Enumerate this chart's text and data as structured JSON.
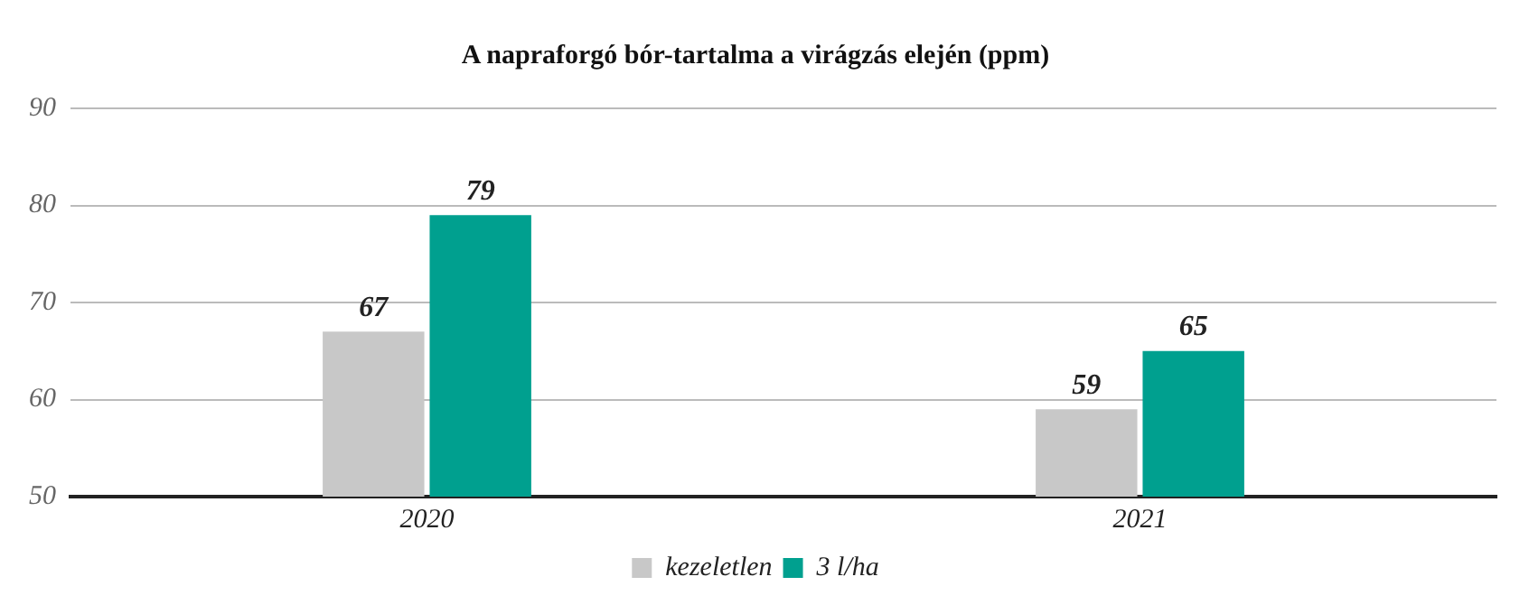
{
  "chart_data": {
    "type": "bar",
    "title": "A napraforgó bór-tartalma a virágzás elején (ppm)",
    "categories": [
      "2020",
      "2021"
    ],
    "series": [
      {
        "name": "kezeletlen",
        "color": "#c8c8c8",
        "values": [
          67,
          59
        ]
      },
      {
        "name": "3 l/ha",
        "color": "#00a08f",
        "values": [
          79,
          65
        ]
      }
    ],
    "ylim": [
      50,
      90
    ],
    "yticks": [
      50,
      60,
      70,
      80,
      90
    ],
    "grid": "y",
    "legend": "bottom",
    "data_labels": true
  }
}
